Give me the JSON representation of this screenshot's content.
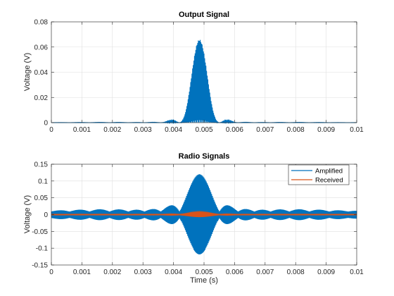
{
  "chart_data": [
    {
      "type": "line",
      "title": "Output Signal",
      "xlabel": "",
      "ylabel": "Voltage (V)",
      "xlim": [
        0,
        0.01
      ],
      "ylim": [
        0,
        0.08
      ],
      "xticks": [
        "0",
        "0.001",
        "0.002",
        "0.003",
        "0.004",
        "0.005",
        "0.006",
        "0.007",
        "0.008",
        "0.009",
        "0.01"
      ],
      "yticks": [
        "0",
        "0.02",
        "0.04",
        "0.06",
        "0.08"
      ],
      "grid": true,
      "series": [
        {
          "color": "#0072BD",
          "envelope": "squared sinc-modulated carrier, lobes peaking ~0.066 V near x=0.0047 and x=0.0050",
          "lobe_peaks": [
            {
              "x": 0.0047,
              "y": 0.066
            },
            {
              "x": 0.005,
              "y": 0.065
            },
            {
              "x": 0.0044,
              "y": 0.049
            },
            {
              "x": 0.0053,
              "y": 0.047
            },
            {
              "x": 0.0041,
              "y": 0.032
            },
            {
              "x": 0.0056,
              "y": 0.026
            },
            {
              "x": 0.0038,
              "y": 0.02
            },
            {
              "x": 0.0035,
              "y": 0.012
            }
          ]
        }
      ]
    },
    {
      "type": "line",
      "title": "Radio Signals",
      "xlabel": "Time (s)",
      "ylabel": "Voltage (V)",
      "xlim": [
        0,
        0.01
      ],
      "ylim": [
        -0.15,
        0.15
      ],
      "xticks": [
        "0",
        "0.001",
        "0.002",
        "0.003",
        "0.004",
        "0.005",
        "0.006",
        "0.007",
        "0.008",
        "0.009",
        "0.01"
      ],
      "yticks": [
        "-0.15",
        "-0.1",
        "-0.05",
        "0",
        "0.05",
        "0.1",
        "0.15"
      ],
      "grid": true,
      "legend": {
        "position": "top-right"
      },
      "series": [
        {
          "name": "Amplified",
          "color": "#0072BD",
          "peak_amplitude": 0.12,
          "peak_x": 0.0048
        },
        {
          "name": "Received",
          "color": "#D95319",
          "peak_amplitude": 0.006,
          "peak_x": 0.0048
        }
      ]
    }
  ]
}
